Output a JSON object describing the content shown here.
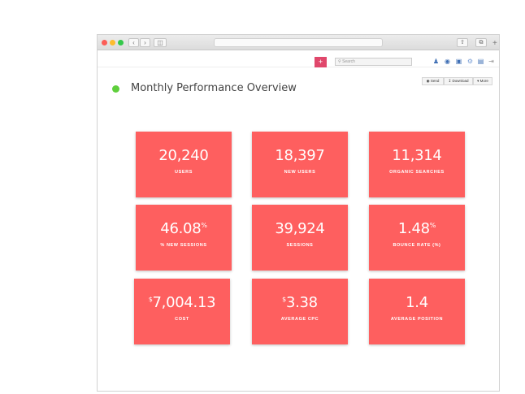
{
  "browser": {
    "url": "",
    "new_tab": "+"
  },
  "appbar": {
    "add_label": "+",
    "search_placeholder": "Search"
  },
  "actions": {
    "send": "Send",
    "download": "Download",
    "more": "More"
  },
  "page": {
    "title": "Monthly Performance Overview",
    "status_color": "#5fcf3c"
  },
  "metrics": [
    {
      "prefix": "",
      "value": "20,240",
      "suffix": "",
      "label": "USERS"
    },
    {
      "prefix": "",
      "value": "18,397",
      "suffix": "",
      "label": "NEW USERS"
    },
    {
      "prefix": "",
      "value": "11,314",
      "suffix": "",
      "label": "ORGANIC SEARCHES"
    },
    {
      "prefix": "",
      "value": "46.08",
      "suffix": "%",
      "label": "% NEW SESSIONS"
    },
    {
      "prefix": "",
      "value": "39,924",
      "suffix": "",
      "label": "SESSIONS"
    },
    {
      "prefix": "",
      "value": "1.48",
      "suffix": "%",
      "label": "BOUNCE RATE (%)"
    },
    {
      "prefix": "$",
      "value": "7,004.13",
      "suffix": "",
      "label": "COST"
    },
    {
      "prefix": "$",
      "value": "3.38",
      "suffix": "",
      "label": "AVERAGE CPC"
    },
    {
      "prefix": "",
      "value": "1.4",
      "suffix": "",
      "label": "AVERAGE POSITION"
    }
  ],
  "colors": {
    "card": "#fe5f5f",
    "add_button": "#e0476b"
  }
}
